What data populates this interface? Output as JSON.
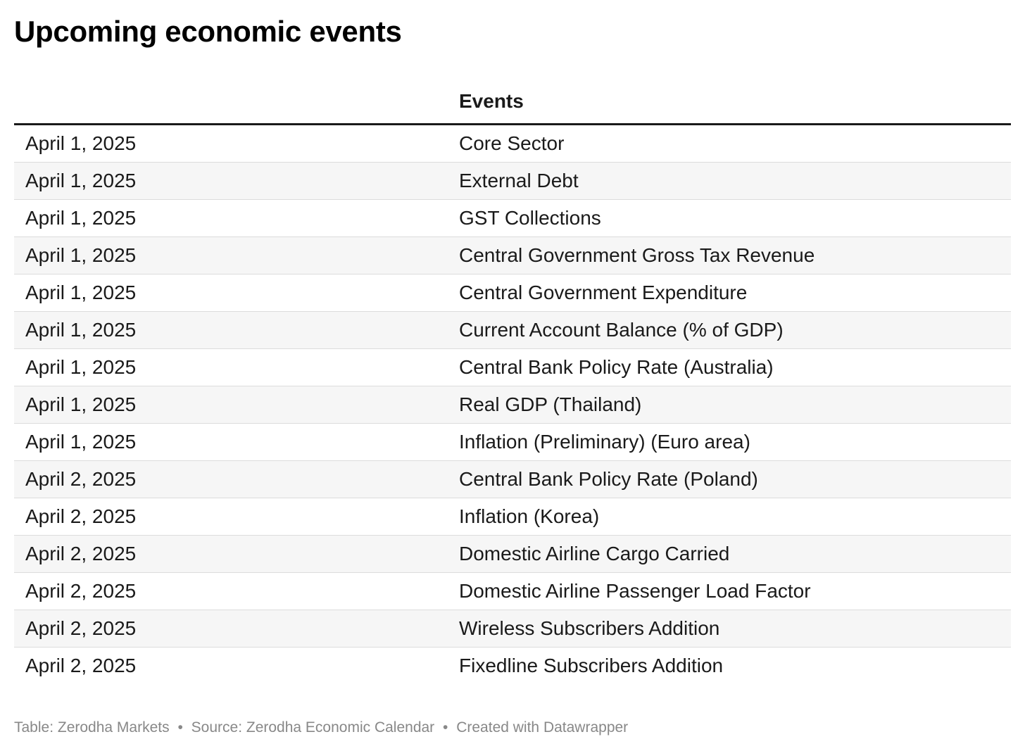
{
  "title": "Upcoming economic events",
  "table": {
    "columns": [
      "",
      "Events"
    ],
    "rows": [
      {
        "date": "April 1, 2025",
        "event": "Core Sector"
      },
      {
        "date": "April 1, 2025",
        "event": "External Debt"
      },
      {
        "date": "April 1, 2025",
        "event": "GST Collections"
      },
      {
        "date": "April 1, 2025",
        "event": "Central Government Gross Tax Revenue"
      },
      {
        "date": "April 1, 2025",
        "event": "Central Government Expenditure"
      },
      {
        "date": "April 1, 2025",
        "event": "Current Account Balance (% of GDP)"
      },
      {
        "date": "April 1, 2025",
        "event": "Central Bank Policy Rate (Australia)"
      },
      {
        "date": "April 1, 2025",
        "event": "Real GDP (Thailand)"
      },
      {
        "date": "April 1, 2025",
        "event": "Inflation (Preliminary) (Euro area)"
      },
      {
        "date": "April 2, 2025",
        "event": "Central Bank Policy Rate (Poland)"
      },
      {
        "date": "April 2, 2025",
        "event": "Inflation (Korea)"
      },
      {
        "date": "April 2, 2025",
        "event": "Domestic Airline Cargo Carried"
      },
      {
        "date": "April 2, 2025",
        "event": "Domestic Airline Passenger Load Factor"
      },
      {
        "date": "April 2, 2025",
        "event": "Wireless Subscribers Addition"
      },
      {
        "date": "April 2, 2025",
        "event": "Fixedline Subscribers Addition"
      }
    ]
  },
  "footer": {
    "table_credit": "Table: Zerodha Markets",
    "source": "Source: Zerodha Economic Calendar",
    "created_with": "Created with Datawrapper",
    "separator": "•"
  },
  "colors": {
    "text": "#1a1a1a",
    "header_rule": "#1a1a1a",
    "row_stripe": "#f6f6f6",
    "row_divider": "#dcdcdc",
    "footer_text": "#888888"
  }
}
